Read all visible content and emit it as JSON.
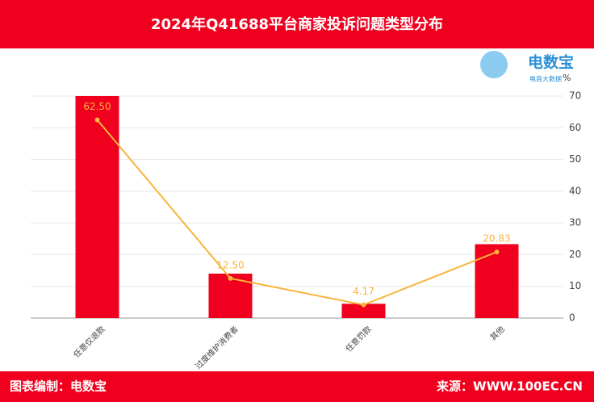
{
  "header": {
    "title": "2024年Q41688平台商家投诉问题类型分布"
  },
  "logo": {
    "name": "电数宝",
    "sub": "电商大数据"
  },
  "chart_data": {
    "type": "bar-line",
    "unit": "%",
    "categories": [
      "任意仅退款",
      "过度维护消费者",
      "任意罚款",
      "其他"
    ],
    "series": [
      {
        "type": "bar",
        "color": "#f0001e",
        "values": [
          70,
          14,
          4.5,
          23.3
        ]
      },
      {
        "type": "line",
        "color": "#f9b43a",
        "values": [
          62.5,
          12.5,
          4.17,
          20.83
        ],
        "value_labels": [
          "62.50",
          "12.50",
          "4.17",
          "20.83"
        ]
      }
    ],
    "ylim": [
      0,
      70
    ],
    "yticks": [
      0,
      10,
      20,
      30,
      40,
      50,
      60,
      70
    ],
    "grid": true
  },
  "footer": {
    "left": "图表编制：电数宝",
    "right": "来源：WWW.100EC.CN"
  }
}
